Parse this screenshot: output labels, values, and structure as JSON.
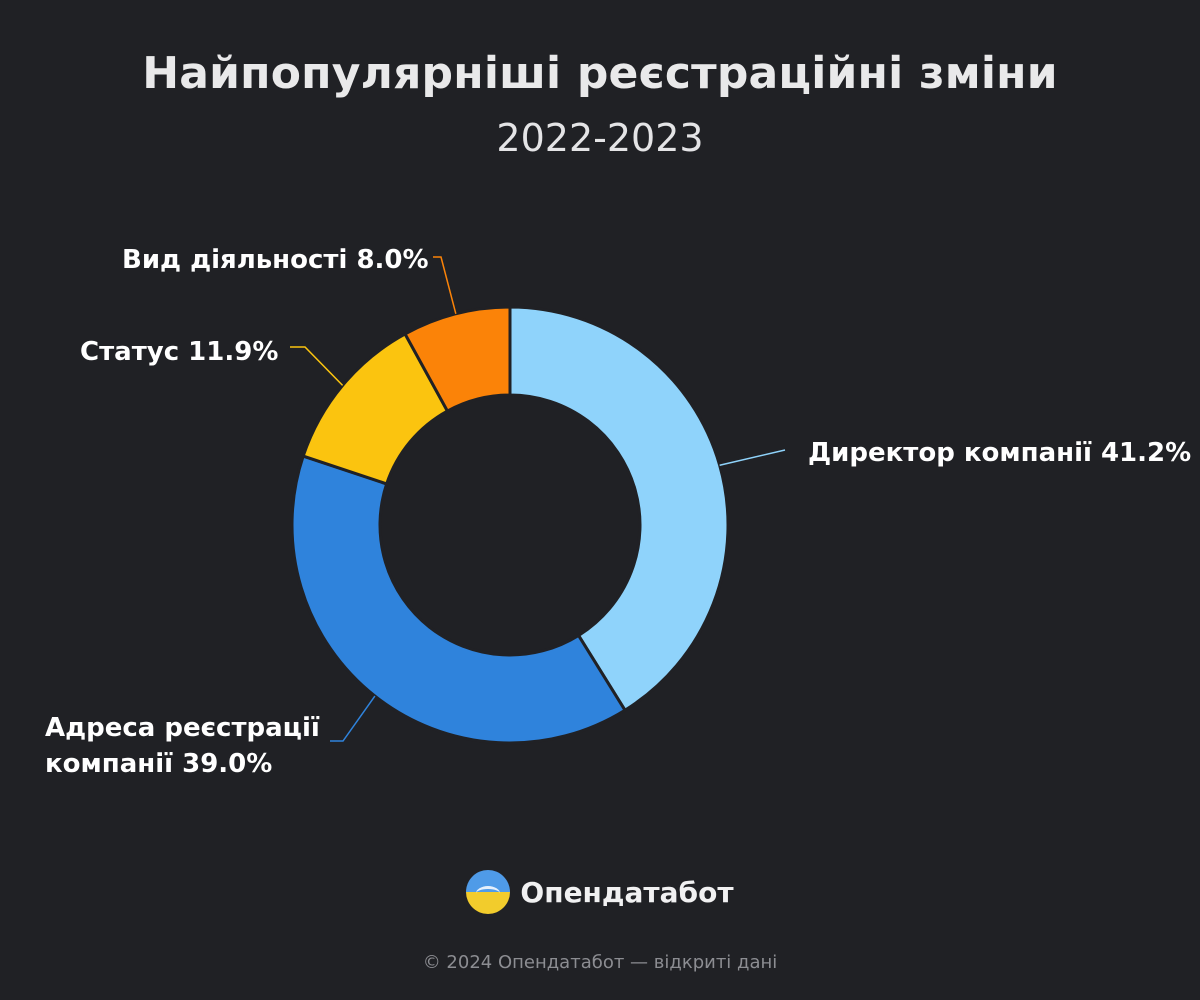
{
  "header": {
    "title": "Найпопулярніші реєстраційні зміни",
    "subtitle": "2022-2023"
  },
  "chart_data": {
    "type": "pie",
    "title": "Найпопулярніші реєстраційні зміни",
    "subtitle": "2022-2023",
    "donut": true,
    "slices": [
      {
        "label": "Директор компанії",
        "value": 41.2,
        "display": "Директор компанії 41.2%",
        "color": "#8fd3fb"
      },
      {
        "label": "Адреса реєстрації компанії",
        "value": 39.0,
        "display": "Адреса реєстрації компанії 39.0%",
        "color": "#2f83dc"
      },
      {
        "label": "Статус",
        "value": 11.9,
        "display": "Статус 11.9%",
        "color": "#fbc40f"
      },
      {
        "label": "Вид діяльності",
        "value": 8.0,
        "display": "Вид діяльності 8.0%",
        "color": "#fb8308"
      }
    ]
  },
  "brand": {
    "name": "Опендатабот",
    "logo_icon": "opendatabot-logo-icon"
  },
  "footer": {
    "text": "© 2024 Опендатабот — відкриті дані"
  }
}
